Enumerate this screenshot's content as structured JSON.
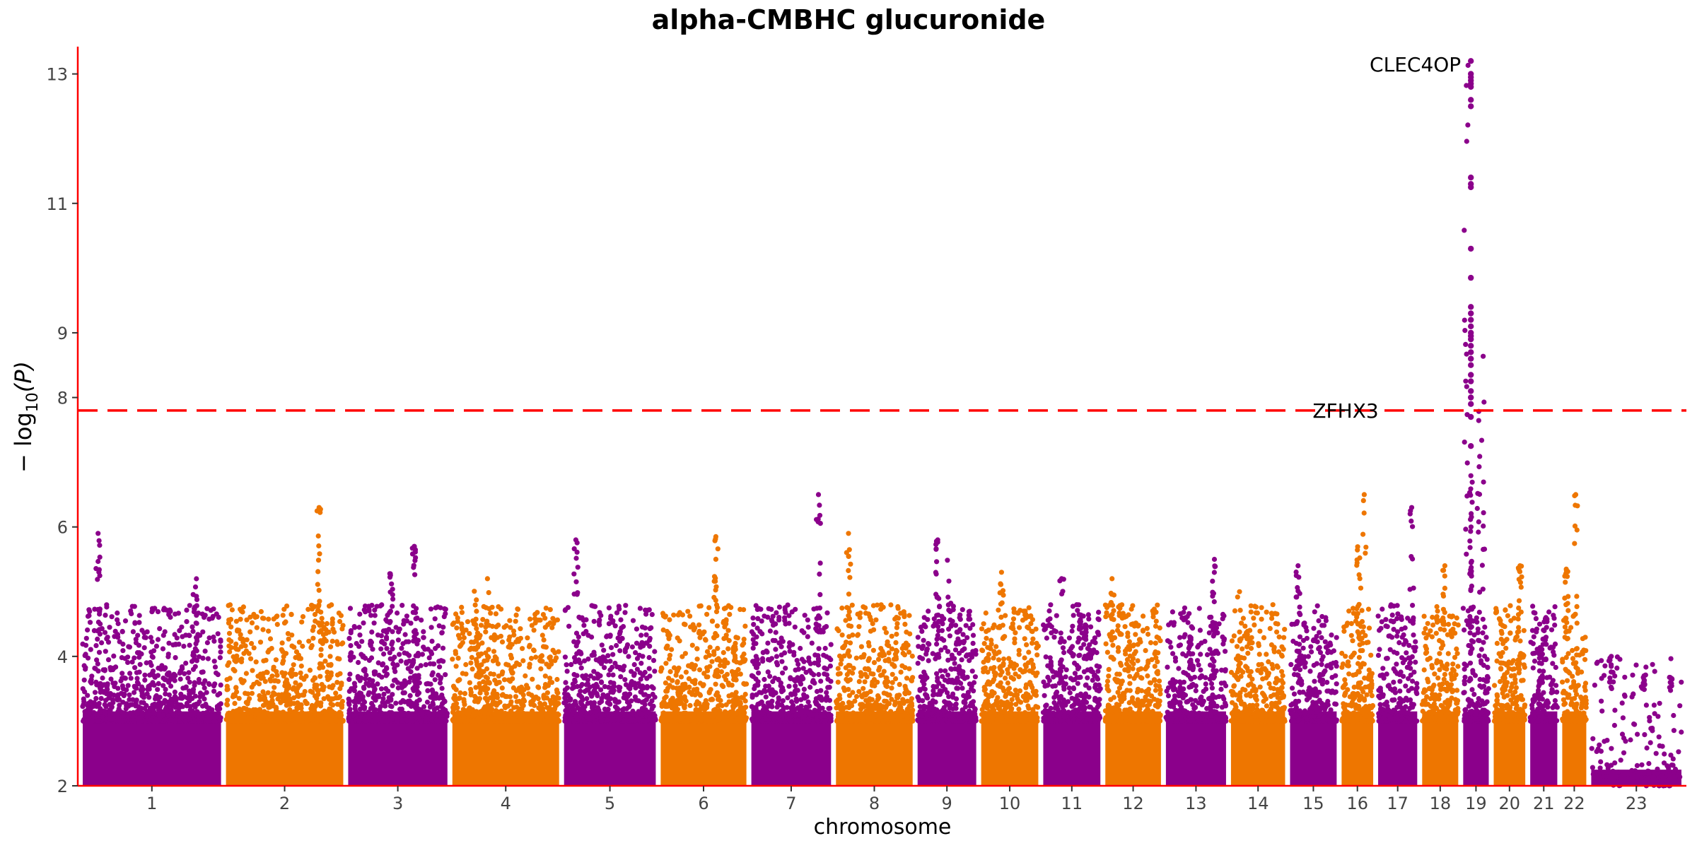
{
  "chart_data": {
    "type": "scatter",
    "title": "alpha-CMBHC glucuronide",
    "xlabel": "chromosome",
    "ylabel": "− log10(P)",
    "ylabel_main": "− log",
    "ylabel_sub": "10",
    "ylabel_var": "(P)",
    "ylim": [
      2,
      13.4
    ],
    "yticks": [
      2,
      4,
      6,
      8,
      9,
      11,
      13
    ],
    "grid": false,
    "legend": "none",
    "significance_threshold": 7.8,
    "colors": {
      "odd": "#8B008B",
      "even": "#EE7600",
      "threshold": "#FF0000",
      "axis": "#FF0000"
    },
    "chromosomes": [
      {
        "label": "1",
        "peak": 5.9,
        "color": "odd"
      },
      {
        "label": "2",
        "peak": 6.3,
        "color": "even"
      },
      {
        "label": "3",
        "peak": 5.7,
        "color": "odd"
      },
      {
        "label": "4",
        "peak": 5.2,
        "color": "even"
      },
      {
        "label": "5",
        "peak": 5.8,
        "color": "odd"
      },
      {
        "label": "6",
        "peak": 5.85,
        "color": "even"
      },
      {
        "label": "7",
        "peak": 6.5,
        "color": "odd"
      },
      {
        "label": "8",
        "peak": 5.9,
        "color": "even"
      },
      {
        "label": "9",
        "peak": 5.8,
        "color": "odd"
      },
      {
        "label": "10",
        "peak": 5.3,
        "color": "even"
      },
      {
        "label": "11",
        "peak": 5.2,
        "color": "odd"
      },
      {
        "label": "12",
        "peak": 5.2,
        "color": "even"
      },
      {
        "label": "13",
        "peak": 5.5,
        "color": "odd"
      },
      {
        "label": "14",
        "peak": 5.0,
        "color": "even"
      },
      {
        "label": "15",
        "peak": 5.4,
        "color": "odd"
      },
      {
        "label": "16",
        "peak": 6.5,
        "color": "even"
      },
      {
        "label": "17",
        "peak": 6.3,
        "color": "odd"
      },
      {
        "label": "18",
        "peak": 5.4,
        "color": "even"
      },
      {
        "label": "19",
        "peak": 13.2,
        "color": "odd"
      },
      {
        "label": "20",
        "peak": 5.4,
        "color": "even"
      },
      {
        "label": "21",
        "peak": 4.6,
        "color": "odd"
      },
      {
        "label": "22",
        "peak": 6.5,
        "color": "even"
      },
      {
        "label": "23",
        "peak": 4.0,
        "color": "odd"
      }
    ],
    "chr19_hits": [
      13.2,
      13.0,
      12.95,
      12.9,
      12.85,
      12.8,
      12.6,
      12.5,
      11.4,
      11.3,
      11.25,
      10.3,
      9.85,
      9.4,
      9.3,
      9.2,
      9.1,
      9.0,
      8.95,
      8.9,
      8.8,
      8.7,
      8.6,
      8.5,
      8.35,
      8.25,
      8.1,
      8.0,
      7.9,
      7.7,
      7.25
    ],
    "annotations": [
      {
        "label": "CLEC4OP",
        "chromosome": "19",
        "y": 13.15
      },
      {
        "label": "ZFHX3",
        "chromosome": "16",
        "y": 7.8
      }
    ]
  }
}
